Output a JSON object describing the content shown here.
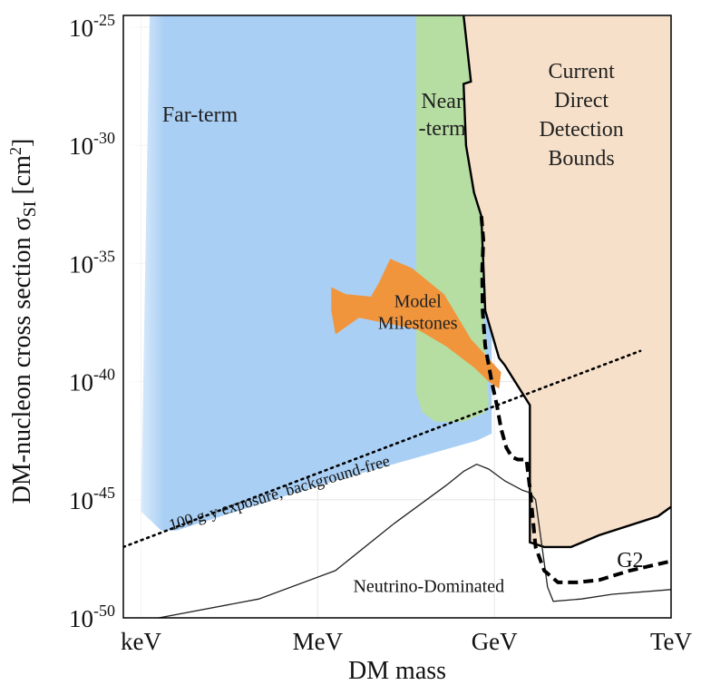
{
  "chart_data": {
    "type": "area",
    "title": "",
    "xlabel": "DM mass",
    "ylabel": "DM-nucleon cross section σSI [cm²]",
    "ylabel_parts": {
      "main": "DM-nucleon cross section σ",
      "sub": "SI",
      "unit_open": " [cm",
      "unit_sup": "2",
      "unit_close": "]"
    },
    "x_scale": "log",
    "x_unit": "GeV",
    "xlim": [
      5e-07,
      1000
    ],
    "ylim": [
      -50,
      -24.5
    ],
    "x_ticks": [
      {
        "value": 1e-06,
        "label": "keV"
      },
      {
        "value": 0.001,
        "label": "MeV"
      },
      {
        "value": 1,
        "label": "GeV"
      },
      {
        "value": 1000,
        "label": "TeV"
      }
    ],
    "y_ticks": [
      {
        "exp": -25,
        "base": "10",
        "sup": "-25"
      },
      {
        "exp": -30,
        "base": "10",
        "sup": "-30"
      },
      {
        "exp": -35,
        "base": "10",
        "sup": "-35"
      },
      {
        "exp": -40,
        "base": "10",
        "sup": "-40"
      },
      {
        "exp": -45,
        "base": "10",
        "sup": "-45"
      },
      {
        "exp": -50,
        "base": "10",
        "sup": "-50"
      }
    ],
    "grid": true,
    "regions": [
      {
        "key": "far_term",
        "label_lines": [
          "Far-term"
        ],
        "color": "#a9cff4",
        "label_at": [
          1e-05,
          -29
        ]
      },
      {
        "key": "near_term",
        "label_lines": [
          "Near",
          "-term"
        ],
        "color": "#b6dda2",
        "label_at": [
          0.13,
          -29
        ]
      },
      {
        "key": "direct_detection",
        "label_lines": [
          "Current",
          "Direct",
          "Detection",
          "Bounds"
        ],
        "color": "#f6e0c9",
        "label_at": [
          30,
          -29
        ]
      },
      {
        "key": "model_milestones",
        "label_lines": [
          "Model",
          "Milestones"
        ],
        "color": "#f1953d",
        "label_at": [
          0.05,
          -37.3
        ]
      }
    ],
    "far_term_boundary": [
      [
        1e-06,
        -45.5
      ],
      [
        2.2e-06,
        -46.3
      ],
      [
        4e-06,
        -46.3
      ],
      [
        0.001,
        -44.4
      ],
      [
        0.5,
        -42.5
      ],
      [
        0.9,
        -42.2
      ],
      [
        0.9,
        -24.5
      ],
      [
        1.4e-06,
        -24.5
      ]
    ],
    "near_term_boundary": [
      [
        0.047,
        -24.5
      ],
      [
        0.047,
        -40.5
      ],
      [
        0.06,
        -41.3
      ],
      [
        0.1,
        -41.7
      ],
      [
        0.3,
        -41.7
      ],
      [
        0.7,
        -41.3
      ],
      [
        0.8,
        -41.0
      ],
      [
        0.65,
        -37.0
      ],
      [
        0.6,
        -33.0
      ],
      [
        0.45,
        -32.0
      ],
      [
        0.33,
        -30.0
      ],
      [
        0.3,
        -27.4
      ],
      [
        0.4,
        -27.3
      ],
      [
        0.3,
        -24.5
      ]
    ],
    "direct_detection_bound": [
      [
        0.3,
        -24.5
      ],
      [
        0.4,
        -27.3
      ],
      [
        0.3,
        -27.4
      ],
      [
        0.33,
        -30.0
      ],
      [
        0.45,
        -32.0
      ],
      [
        0.6,
        -33.0
      ],
      [
        0.7,
        -37.0
      ],
      [
        1.2,
        -39.0
      ],
      [
        1.5,
        -39.3
      ],
      [
        2,
        -39.8
      ],
      [
        3,
        -40.5
      ],
      [
        4,
        -41.0
      ],
      [
        4,
        -46.8
      ],
      [
        7,
        -47.0
      ],
      [
        20,
        -47.0
      ],
      [
        60,
        -46.5
      ],
      [
        600,
        -45.7
      ],
      [
        1000,
        -45.3
      ]
    ],
    "model_milestones_region": [
      [
        0.0017,
        -36.0
      ],
      [
        0.003,
        -36.3
      ],
      [
        0.008,
        -36.4
      ],
      [
        0.011,
        -35.8
      ],
      [
        0.017,
        -34.8
      ],
      [
        0.04,
        -35.2
      ],
      [
        0.14,
        -36.3
      ],
      [
        0.4,
        -38.2
      ],
      [
        1.3,
        -39.6
      ],
      [
        1.2,
        -40.3
      ],
      [
        0.8,
        -40.0
      ],
      [
        0.45,
        -39.4
      ],
      [
        0.15,
        -38.5
      ],
      [
        0.05,
        -37.8
      ],
      [
        0.02,
        -37.6
      ],
      [
        0.005,
        -37.3
      ],
      [
        0.002,
        -38.0
      ],
      [
        0.0017,
        -37.0
      ]
    ],
    "series": [
      {
        "name": "100 g-y exposure, background-free",
        "style": "dotted",
        "x": [
          5e-07,
          300
        ],
        "y": [
          -47.0,
          -38.7
        ]
      },
      {
        "name": "G2",
        "style": "dashed",
        "x": [
          0.6,
          0.65,
          0.62,
          0.63,
          0.7,
          0.9,
          1.1,
          1.3,
          1.6,
          2.0,
          2.5,
          3,
          3.5,
          4,
          5,
          7,
          12,
          25,
          60,
          200,
          1000
        ],
        "y": [
          -33.0,
          -34.0,
          -35.3,
          -37.0,
          -38.5,
          -40.0,
          -41.0,
          -42.0,
          -42.8,
          -43.2,
          -43.3,
          -43.3,
          -43.3,
          -44.5,
          -47.0,
          -48.0,
          -48.5,
          -48.5,
          -48.4,
          -48.0,
          -47.6
        ]
      },
      {
        "name": "Neutrino-Dominated",
        "style": "solid-thin",
        "x": [
          2e-06,
          0.0001,
          0.002,
          0.02,
          0.15,
          0.3,
          0.5,
          0.8,
          1.5,
          3,
          4,
          5,
          8,
          10,
          30,
          100,
          1000
        ],
        "y": [
          -50.0,
          -49.2,
          -48.0,
          -46.0,
          -44.4,
          -43.8,
          -43.5,
          -43.7,
          -44.2,
          -44.6,
          -44.7,
          -45.0,
          -48.7,
          -49.3,
          -49.2,
          -49.0,
          -48.8
        ]
      }
    ],
    "annotations": [
      {
        "text": "100 g-y exposure, background-free",
        "angle": -16.5,
        "at": [
          3.2e-06,
          -46.3
        ]
      },
      {
        "text": "G2",
        "at": [
          120,
          -47.85
        ]
      },
      {
        "text": "Neutrino-Dominated",
        "at": [
          0.004,
          -48.9
        ]
      }
    ]
  }
}
